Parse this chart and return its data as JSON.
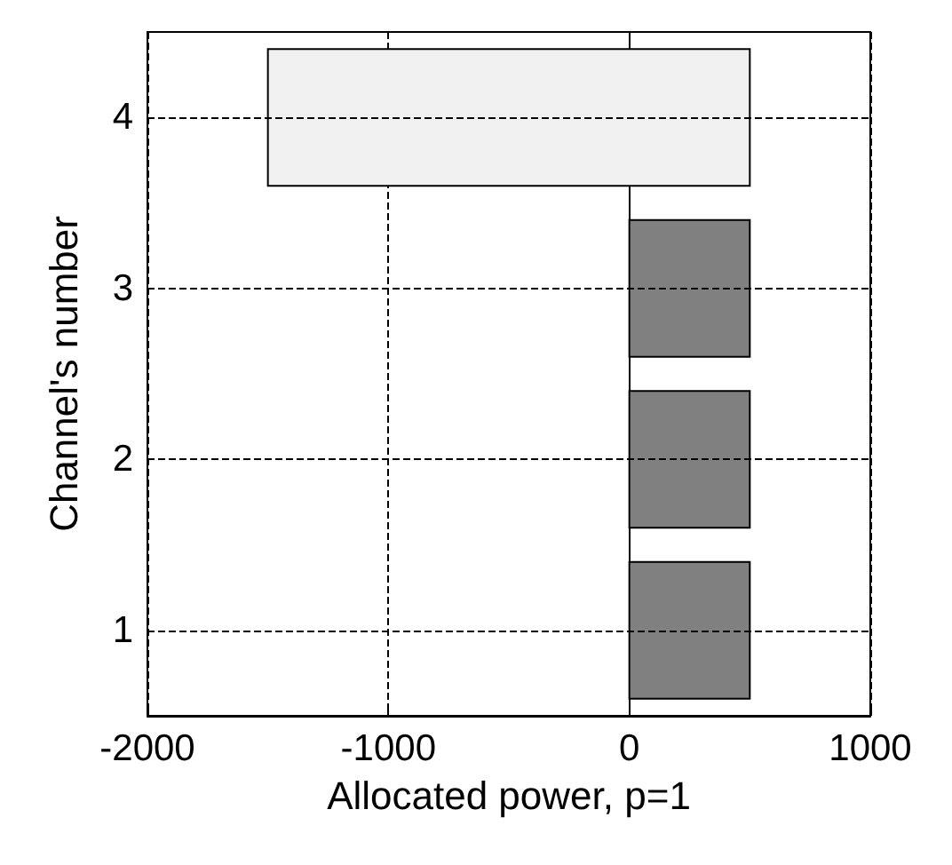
{
  "chart_data": {
    "type": "bar",
    "orientation": "horizontal",
    "xlabel": "Allocated power, p=1",
    "ylabel": "Channel's number",
    "categories": [
      "4",
      "3",
      "2",
      "1"
    ],
    "base": [
      -1500,
      0,
      0,
      0
    ],
    "values": [
      2000,
      500,
      500,
      500
    ],
    "colors": [
      "#f0f0f0",
      "#808080",
      "#808080",
      "#808080"
    ],
    "xlim": [
      -2000,
      1000
    ],
    "xticks": [
      -2000,
      -1000,
      0,
      1000
    ],
    "grid": true
  }
}
